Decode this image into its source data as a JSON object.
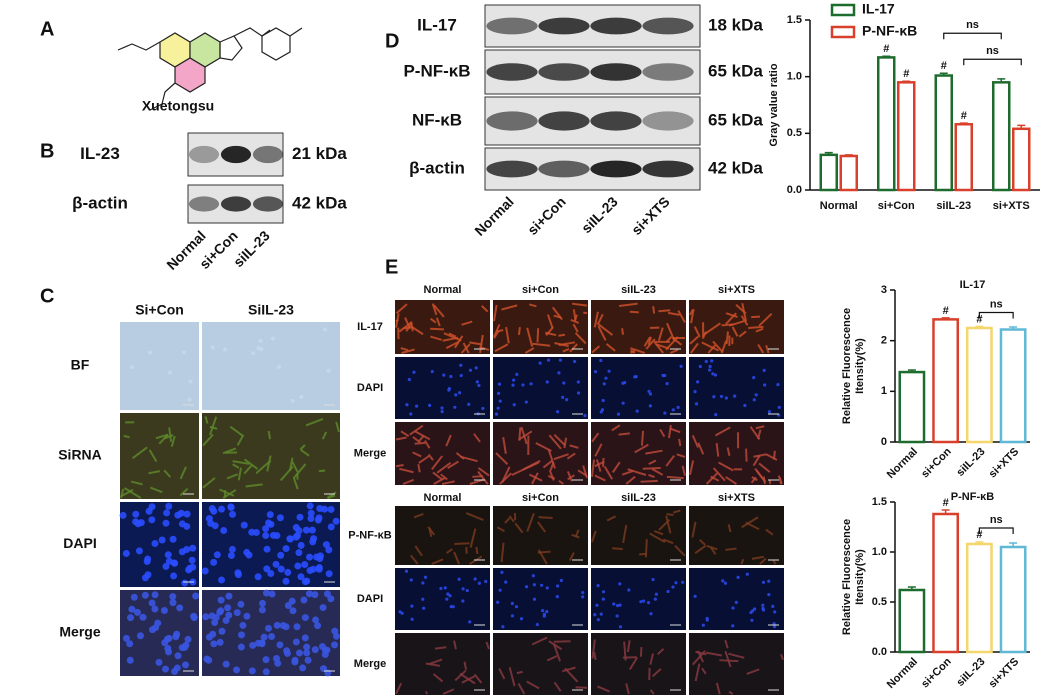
{
  "panels": {
    "A": {
      "label": "A",
      "compound": "Xuetongsu"
    },
    "B": {
      "label": "B",
      "rows": [
        {
          "protein": "IL-23",
          "size": "21 kDa"
        },
        {
          "protein": "β-actin",
          "size": "42 kDa"
        }
      ],
      "lanes": [
        "Normal",
        "si+Con",
        "siIL-23"
      ]
    },
    "C": {
      "label": "C",
      "columns": [
        "Si+Con",
        "SiIL-23"
      ],
      "rows": [
        "BF",
        "SiRNA",
        "DAPI",
        "Merge"
      ]
    },
    "D": {
      "label": "D",
      "rows": [
        {
          "protein": "IL-17",
          "size": "18 kDa"
        },
        {
          "protein": "P-NF-κB",
          "size": "65 kDa"
        },
        {
          "protein": "NF-κB",
          "size": "65 kDa"
        },
        {
          "protein": "β-actin",
          "size": "42 kDa"
        }
      ],
      "lanes": [
        "Normal",
        "si+Con",
        "siIL-23",
        "si+XTS"
      ]
    },
    "E": {
      "label": "E",
      "groups": [
        {
          "columns": [
            "Normal",
            "si+Con",
            "siIL-23",
            "si+XTS"
          ],
          "rows": [
            "IL-17",
            "DAPI",
            "Merge"
          ]
        },
        {
          "columns": [
            "Normal",
            "si+Con",
            "siIL-23",
            "si+XTS"
          ],
          "rows": [
            "P-NF-κB",
            "DAPI",
            "Merge"
          ]
        }
      ]
    }
  },
  "chart_data": [
    {
      "type": "bar",
      "ylabel": [
        "Gray value ratio"
      ],
      "categories": [
        "Normal",
        "si+Con",
        "siIL-23",
        "si+XTS"
      ],
      "series": [
        {
          "name": "IL-17",
          "color": "#1e6b2e",
          "values": [
            0.31,
            1.17,
            1.01,
            0.95
          ],
          "errors": [
            0.02,
            0.01,
            0.02,
            0.03
          ],
          "marks": [
            null,
            "#",
            "#",
            null
          ]
        },
        {
          "name": "P-NF-κB",
          "color": "#d9402b",
          "values": [
            0.3,
            0.95,
            0.58,
            0.54
          ],
          "errors": [
            0.01,
            0.01,
            0.01,
            0.03
          ],
          "marks": [
            null,
            "#",
            "#",
            null
          ]
        }
      ],
      "brackets": [
        {
          "label": "ns",
          "series": "IL-17",
          "from": "siIL-23",
          "to": "si+XTS"
        },
        {
          "label": "ns",
          "series": "P-NF-κB",
          "from": "siIL-23",
          "to": "si+XTS"
        }
      ],
      "ylim": [
        0,
        1.5
      ],
      "yticks": [
        {
          "value": 0,
          "label": "0.0"
        },
        {
          "value": 0.5,
          "label": "0.5"
        },
        {
          "value": 1,
          "label": "1.0"
        },
        {
          "value": 1.5,
          "label": "1.5"
        }
      ],
      "legend": "top-left",
      "category_labels": "horizontal"
    },
    {
      "type": "bar",
      "title": "IL-17",
      "ylabel": [
        "Relative Fluorescence",
        "Itensity(%)"
      ],
      "categories": [
        "Normal",
        "si+Con",
        "siIL-23",
        "si+XTS"
      ],
      "values": [
        1.38,
        2.42,
        2.25,
        2.22
      ],
      "errors": [
        0.04,
        0.03,
        0.03,
        0.05
      ],
      "marks": [
        null,
        "#",
        "#",
        null
      ],
      "colors": [
        "#1e6b2e",
        "#d9402b",
        "#f5d66b",
        "#5fb8d6"
      ],
      "brackets": [
        {
          "label": "ns",
          "from": "siIL-23",
          "to": "si+XTS"
        }
      ],
      "ylim": [
        0,
        3
      ],
      "yticks": [
        0,
        1,
        2,
        3
      ],
      "category_labels": "rotated"
    },
    {
      "type": "bar",
      "title": "P-NF-κB",
      "ylabel": [
        "Relative Fluorescence",
        "Itensity(%)"
      ],
      "categories": [
        "Normal",
        "si+Con",
        "siIL-23",
        "si+XTS"
      ],
      "values": [
        0.62,
        1.38,
        1.08,
        1.05
      ],
      "errors": [
        0.03,
        0.04,
        0.02,
        0.04
      ],
      "marks": [
        null,
        "#",
        "#",
        null
      ],
      "colors": [
        "#1e6b2e",
        "#d9402b",
        "#f5d66b",
        "#5fb8d6"
      ],
      "brackets": [
        {
          "label": "ns",
          "from": "siIL-23",
          "to": "si+XTS"
        }
      ],
      "ylim": [
        0,
        1.5
      ],
      "yticks": [
        {
          "value": 0,
          "label": "0.0"
        },
        {
          "value": 0.5,
          "label": "0.5"
        },
        {
          "value": 1,
          "label": "1.0"
        },
        {
          "value": 1.5,
          "label": "1.5"
        }
      ],
      "category_labels": "rotated"
    }
  ]
}
